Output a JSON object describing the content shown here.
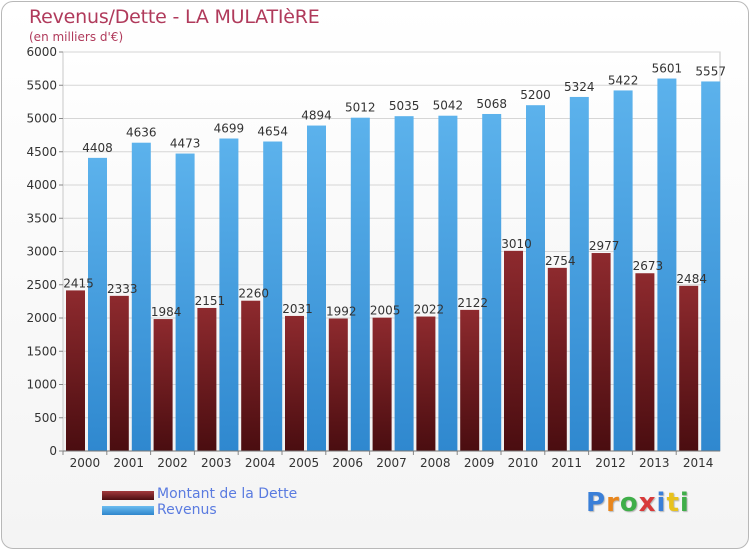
{
  "chart_data": {
    "type": "bar",
    "title": "Revenus/Dette - LA MULATIèRE",
    "subtitle": "(en milliers d'€)",
    "categories": [
      "2000",
      "2001",
      "2002",
      "2003",
      "2004",
      "2005",
      "2006",
      "2007",
      "2008",
      "2009",
      "2010",
      "2011",
      "2012",
      "2013",
      "2014"
    ],
    "series": [
      {
        "name": "Montant de la Dette",
        "values": [
          2415,
          2333,
          1984,
          2151,
          2260,
          2031,
          1992,
          2005,
          2022,
          2122,
          3010,
          2754,
          2977,
          2673,
          2484
        ],
        "labels": [
          "2415",
          "2333",
          "1984",
          "2151",
          "2260",
          "2031",
          "1992",
          "2005",
          "2022",
          "2122",
          "3010",
          "2754",
          "2977",
          "2673",
          "2484"
        ],
        "color": "#7a1f22"
      },
      {
        "name": "Revenus",
        "values": [
          4408,
          4636,
          4473,
          4699,
          4654,
          4894,
          5012,
          5035,
          5042,
          5068,
          5200,
          5324,
          5422,
          5601,
          5557
        ],
        "labels": [
          "4408",
          "4636",
          "4473",
          "4699",
          "4654",
          "4894",
          "5012",
          "5035",
          "5042",
          "5068",
          "5200",
          "5324",
          "5422",
          "5601",
          "5557"
        ],
        "color": "#4aa3e4"
      }
    ],
    "ylim": [
      0,
      6000
    ],
    "yticks": [
      0,
      500,
      1000,
      1500,
      2000,
      2500,
      3000,
      3500,
      4000,
      4500,
      5000,
      5500,
      6000
    ],
    "grid": true,
    "legend": "bottom-left"
  },
  "logo": {
    "letters": [
      "P",
      "r",
      "o",
      "x",
      "i",
      "t",
      "i"
    ],
    "colors": [
      "#3a7fd8",
      "#e8861c",
      "#3fae49",
      "#d83a3a",
      "#3a7fd8",
      "#e8c21c",
      "#3fae49"
    ]
  }
}
